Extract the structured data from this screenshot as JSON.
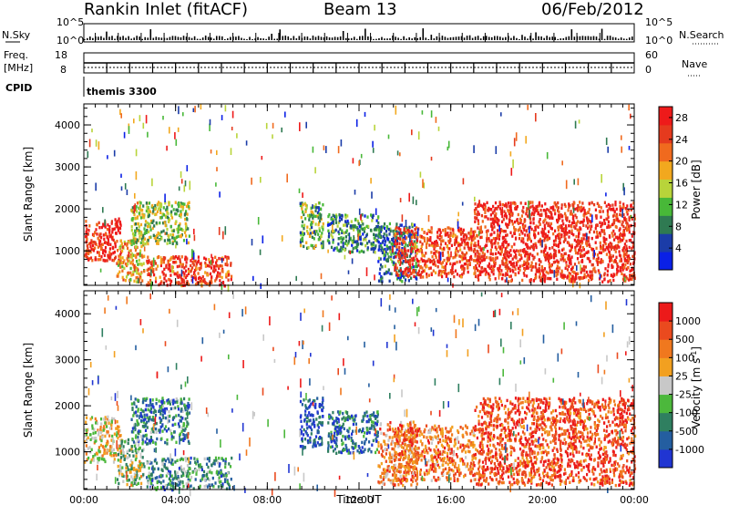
{
  "header": {
    "station": "Rankin Inlet (fitACF)",
    "beam": "Beam 13",
    "date": "06/Feb/2012"
  },
  "status_panel": {
    "nsky_label": "N.Sky",
    "nsearch_label": "N.Search",
    "noise_ticks": [
      "10^5",
      "10^0"
    ],
    "freq_label": "Freq.",
    "freq_unit": "[MHz]",
    "freq_ticks": [
      "18",
      "8"
    ],
    "nave_label": "Nave",
    "nave_ticks": [
      "60",
      "0"
    ],
    "cpid_label": "CPID",
    "cpid_value": "themis 3300"
  },
  "colors": {
    "power": [
      "#0a20e6",
      "#1b3ca8",
      "#2f7a52",
      "#48b838",
      "#b8d43a",
      "#f2a81e",
      "#f06a1e",
      "#e53a1e",
      "#ee1a1a"
    ],
    "velocity": [
      "#2035d2",
      "#245ea0",
      "#2f7f60",
      "#4cb83c",
      "#c8c8c8",
      "#f2a020",
      "#f0781e",
      "#ea4a1e",
      "#ec1a1a"
    ]
  },
  "chart_data": [
    {
      "type": "heatmap",
      "panel": "power",
      "xlabel": "Time UT",
      "ylabel": "Slant Range [km]",
      "x_ticks": [
        "00:00",
        "04:00",
        "08:00",
        "12:00",
        "16:00",
        "20:00",
        "00:00"
      ],
      "y_ticks": [
        1000,
        2000,
        3000,
        4000
      ],
      "xlim_hours": [
        0,
        24
      ],
      "ylim_km": [
        180,
        4500
      ],
      "colorbar_label": "Power [dB]",
      "colorbar_ticks": [
        4,
        8,
        12,
        16,
        20,
        24,
        28
      ],
      "colorbar_range": [
        0,
        30
      ],
      "regions": [
        {
          "t": [
            0.0,
            1.6
          ],
          "r": [
            800,
            1800
          ],
          "level": 0.9
        },
        {
          "t": [
            1.4,
            2.6
          ],
          "r": [
            300,
            1300
          ],
          "level": 0.6
        },
        {
          "t": [
            2.0,
            4.6
          ],
          "r": [
            1200,
            2200
          ],
          "level": 0.45
        },
        {
          "t": [
            2.7,
            6.4
          ],
          "r": [
            200,
            900
          ],
          "level": 0.85
        },
        {
          "t": [
            9.4,
            10.4
          ],
          "r": [
            1100,
            2200
          ],
          "level": 0.4
        },
        {
          "t": [
            10.6,
            12.8
          ],
          "r": [
            1000,
            1900
          ],
          "level": 0.3
        },
        {
          "t": [
            12.8,
            14.5
          ],
          "r": [
            300,
            1700
          ],
          "level": 0.25
        },
        {
          "t": [
            13.5,
            17.0
          ],
          "r": [
            400,
            1600
          ],
          "level": 0.85
        },
        {
          "t": [
            17.0,
            24.0
          ],
          "r": [
            300,
            2200
          ],
          "level": 0.9
        }
      ]
    },
    {
      "type": "heatmap",
      "panel": "velocity",
      "xlabel": "Time UT",
      "ylabel": "Slant Range [km]",
      "x_ticks": [
        "00:00",
        "04:00",
        "08:00",
        "12:00",
        "16:00",
        "20:00",
        "00:00"
      ],
      "y_ticks": [
        1000,
        2000,
        3000,
        4000
      ],
      "xlim_hours": [
        0,
        24
      ],
      "ylim_km": [
        180,
        4500
      ],
      "colorbar_label": "Velocity [m s^-1]",
      "colorbar_ticks": [
        1000,
        500,
        100,
        25,
        -25,
        -100,
        -500,
        -1000
      ],
      "regions": [
        {
          "t": [
            0.0,
            1.6
          ],
          "r": [
            800,
            1800
          ],
          "level": 0.55
        },
        {
          "t": [
            1.4,
            2.6
          ],
          "r": [
            300,
            1300
          ],
          "level": 0.45
        },
        {
          "t": [
            2.0,
            4.6
          ],
          "r": [
            1200,
            2200
          ],
          "level": 0.25
        },
        {
          "t": [
            2.7,
            6.4
          ],
          "r": [
            200,
            900
          ],
          "level": 0.3
        },
        {
          "t": [
            9.4,
            10.4
          ],
          "r": [
            1100,
            2200
          ],
          "level": 0.1
        },
        {
          "t": [
            10.6,
            12.8
          ],
          "r": [
            1000,
            1900
          ],
          "level": 0.2
        },
        {
          "t": [
            12.8,
            14.5
          ],
          "r": [
            300,
            1700
          ],
          "level": 0.7
        },
        {
          "t": [
            13.5,
            17.0
          ],
          "r": [
            400,
            1600
          ],
          "level": 0.75
        },
        {
          "t": [
            17.0,
            24.0
          ],
          "r": [
            300,
            2200
          ],
          "level": 0.85
        }
      ]
    }
  ]
}
